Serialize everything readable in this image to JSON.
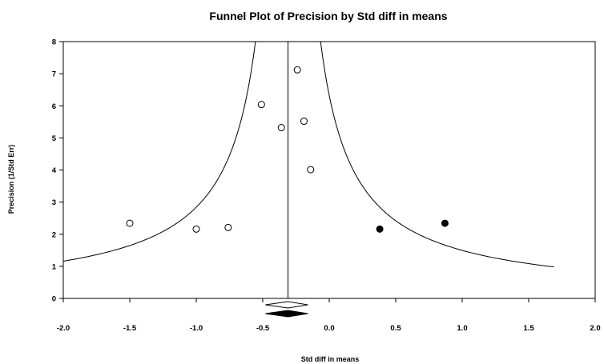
{
  "chart_data": {
    "type": "scatter",
    "title": "Funnel Plot of Precision by Std diff in means",
    "xlabel": "Std diff in means",
    "ylabel": "Precision (1/Std Err)",
    "xlim": [
      -2.0,
      2.0
    ],
    "ylim": [
      0,
      8
    ],
    "x_ticks": [
      "-2.0",
      "-1.5",
      "-1.0",
      "-0.5",
      "0.0",
      "0.5",
      "1.0",
      "1.5",
      "2.0"
    ],
    "y_ticks": [
      "0",
      "1",
      "2",
      "3",
      "4",
      "5",
      "6",
      "7",
      "8"
    ],
    "grid": false,
    "pooled_estimate": -0.31,
    "funnel_curve": "pooled estimate ± 1.96 / precision",
    "series": [
      {
        "marker": "open-circle",
        "points": [
          {
            "x": -1.5,
            "y": 2.34
          },
          {
            "x": -1.0,
            "y": 2.16
          },
          {
            "x": -0.76,
            "y": 2.21
          },
          {
            "x": -0.51,
            "y": 6.04
          },
          {
            "x": -0.36,
            "y": 5.32
          },
          {
            "x": -0.24,
            "y": 7.12
          },
          {
            "x": -0.19,
            "y": 5.52
          },
          {
            "x": -0.14,
            "y": 4.01
          }
        ]
      },
      {
        "marker": "filled-circle",
        "points": [
          {
            "x": 0.38,
            "y": 2.16
          },
          {
            "x": 0.87,
            "y": 2.34
          }
        ]
      }
    ],
    "summary_diamonds": [
      {
        "fill": "open",
        "center": -0.31,
        "lower": -0.48,
        "upper": -0.16
      },
      {
        "fill": "filled",
        "center": -0.31,
        "lower": -0.48,
        "upper": -0.16
      }
    ]
  }
}
